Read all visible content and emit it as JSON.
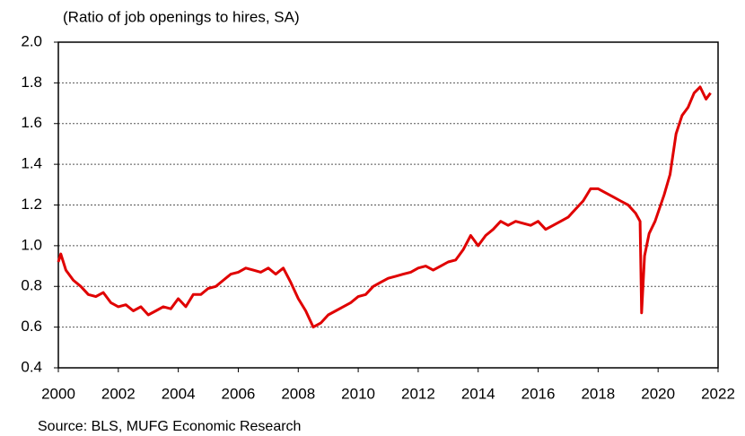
{
  "chart_data": {
    "type": "line",
    "subtitle": "(Ratio of job openings to hires, SA)",
    "source": "Source: BLS, MUFG Economic Research",
    "x": [
      2000.0,
      2000.08,
      2000.25,
      2000.5,
      2000.75,
      2001.0,
      2001.25,
      2001.5,
      2001.75,
      2002.0,
      2002.25,
      2002.5,
      2002.75,
      2003.0,
      2003.25,
      2003.5,
      2003.75,
      2004.0,
      2004.25,
      2004.5,
      2004.75,
      2005.0,
      2005.25,
      2005.5,
      2005.75,
      2006.0,
      2006.25,
      2006.5,
      2006.75,
      2007.0,
      2007.25,
      2007.5,
      2007.75,
      2008.0,
      2008.25,
      2008.5,
      2008.75,
      2009.0,
      2009.25,
      2009.5,
      2009.75,
      2010.0,
      2010.25,
      2010.5,
      2010.75,
      2011.0,
      2011.25,
      2011.5,
      2011.75,
      2012.0,
      2012.25,
      2012.5,
      2012.75,
      2013.0,
      2013.25,
      2013.5,
      2013.75,
      2014.0,
      2014.25,
      2014.5,
      2014.75,
      2015.0,
      2015.25,
      2015.5,
      2015.75,
      2016.0,
      2016.25,
      2016.5,
      2016.75,
      2017.0,
      2017.25,
      2017.5,
      2017.75,
      2018.0,
      2018.25,
      2018.5,
      2018.75,
      2019.0,
      2019.25,
      2019.4,
      2019.45,
      2019.55,
      2019.7,
      2019.9,
      2020.2,
      2020.4,
      2020.6,
      2020.8,
      2021.0,
      2021.2,
      2021.4,
      2021.6,
      2021.75
    ],
    "series": [
      {
        "name": "Ratio of job openings to hires",
        "color": "#e00000",
        "values": [
          0.92,
          0.96,
          0.88,
          0.83,
          0.8,
          0.76,
          0.75,
          0.77,
          0.72,
          0.7,
          0.71,
          0.68,
          0.7,
          0.66,
          0.68,
          0.7,
          0.69,
          0.74,
          0.7,
          0.76,
          0.76,
          0.79,
          0.8,
          0.83,
          0.86,
          0.87,
          0.89,
          0.88,
          0.87,
          0.89,
          0.86,
          0.89,
          0.82,
          0.74,
          0.68,
          0.6,
          0.62,
          0.66,
          0.68,
          0.7,
          0.72,
          0.75,
          0.76,
          0.8,
          0.82,
          0.84,
          0.85,
          0.86,
          0.87,
          0.89,
          0.9,
          0.88,
          0.9,
          0.92,
          0.93,
          0.98,
          1.05,
          1.0,
          1.05,
          1.08,
          1.12,
          1.1,
          1.12,
          1.11,
          1.1,
          1.12,
          1.08,
          1.1,
          1.12,
          1.14,
          1.18,
          1.22,
          1.28,
          1.28,
          1.26,
          1.24,
          1.22,
          1.2,
          1.16,
          1.12,
          0.67,
          0.95,
          1.06,
          1.12,
          1.25,
          1.35,
          1.55,
          1.64,
          1.68,
          1.75,
          1.78,
          1.72,
          1.75
        ]
      }
    ],
    "xlim": [
      2000,
      2022
    ],
    "xticks": [
      2000,
      2002,
      2004,
      2006,
      2008,
      2010,
      2012,
      2014,
      2016,
      2018,
      2020,
      2022
    ],
    "ylim": [
      0.4,
      2.0
    ],
    "yticks": [
      0.4,
      0.6,
      0.8,
      {
        "value": 1.0,
        "label": "1.0"
      },
      1.2,
      1.4,
      1.6,
      1.8,
      {
        "value": 2.0,
        "label": "2.0"
      }
    ],
    "grid": true
  }
}
